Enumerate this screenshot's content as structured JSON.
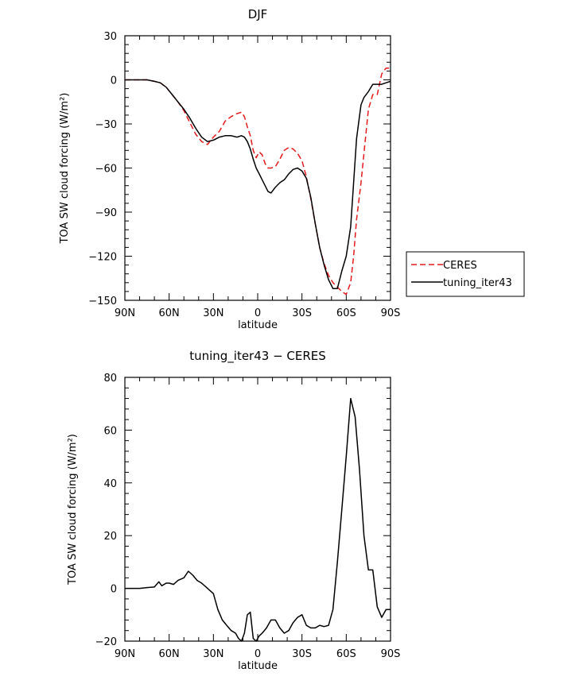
{
  "chart_data": [
    {
      "type": "line",
      "title": "DJF",
      "xlabel": "latitude",
      "ylabel": "TOA SW cloud forcing (W/m²)",
      "x_range": [
        90,
        -90
      ],
      "ylim": [
        -150,
        30
      ],
      "x_ticks": [
        {
          "value": 90,
          "label": "90N"
        },
        {
          "value": 60,
          "label": "60N"
        },
        {
          "value": 30,
          "label": "30N"
        },
        {
          "value": 0,
          "label": "0"
        },
        {
          "value": -30,
          "label": "30S"
        },
        {
          "value": -60,
          "label": "60S"
        },
        {
          "value": -90,
          "label": "90S"
        }
      ],
      "y_ticks": [
        {
          "value": 30,
          "label": "30"
        },
        {
          "value": 0,
          "label": "0"
        },
        {
          "value": -30,
          "label": "−30"
        },
        {
          "value": -60,
          "label": "−60"
        },
        {
          "value": -90,
          "label": "−90"
        },
        {
          "value": -120,
          "label": "−120"
        },
        {
          "value": -150,
          "label": "−150"
        }
      ],
      "legend": {
        "placement": "right",
        "entries": [
          "CERES",
          "tuning_iter43"
        ]
      },
      "series": [
        {
          "name": "CERES",
          "color": "#e41a1c",
          "dash": true,
          "x": [
            90,
            85,
            80,
            75,
            70,
            66,
            62,
            58,
            54,
            50,
            46,
            42,
            38,
            34,
            30,
            26,
            22,
            18,
            14,
            11,
            9,
            7,
            5,
            3,
            1,
            -1,
            -3,
            -5,
            -7,
            -9,
            -12,
            -15,
            -18,
            -21,
            -24,
            -27,
            -30,
            -33,
            -36,
            -39,
            -42,
            -45,
            -48,
            -51,
            -54,
            -57,
            -60,
            -63,
            -65,
            -67,
            -70,
            -72,
            -75,
            -78,
            -81,
            -84,
            -87,
            -90
          ],
          "y": [
            0,
            0,
            0,
            0,
            -1,
            -2,
            -5,
            -10,
            -15,
            -21,
            -29,
            -37,
            -42,
            -44,
            -39,
            -35,
            -28,
            -25,
            -23,
            -22,
            -25,
            -32,
            -38,
            -48,
            -53,
            -49,
            -51,
            -57,
            -60,
            -60,
            -59,
            -54,
            -48,
            -46,
            -47,
            -50,
            -55,
            -66,
            -81,
            -98,
            -114,
            -125,
            -133,
            -138,
            -141,
            -144,
            -146,
            -138,
            -120,
            -95,
            -70,
            -50,
            -20,
            -10,
            -10,
            4,
            8,
            8
          ]
        },
        {
          "name": "tuning_iter43",
          "color": "#000000",
          "dash": false,
          "x": [
            90,
            85,
            80,
            75,
            70,
            66,
            62,
            58,
            54,
            50,
            46,
            42,
            38,
            34,
            30,
            26,
            22,
            18,
            14,
            11,
            9,
            7,
            5,
            3,
            1,
            -1,
            -3,
            -5,
            -7,
            -9,
            -12,
            -15,
            -18,
            -21,
            -24,
            -27,
            -30,
            -33,
            -36,
            -39,
            -42,
            -45,
            -48,
            -51,
            -54,
            -57,
            -60,
            -63,
            -65,
            -67,
            -70,
            -72,
            -75,
            -78,
            -81,
            -84,
            -87,
            -90
          ],
          "y": [
            0,
            0,
            0,
            0,
            -1,
            -2,
            -5,
            -10,
            -15,
            -20,
            -26,
            -33,
            -39,
            -42,
            -41,
            -39,
            -38,
            -38,
            -39,
            -38,
            -39,
            -42,
            -47,
            -54,
            -60,
            -64,
            -68,
            -72,
            -76,
            -77,
            -73,
            -70,
            -68,
            -64,
            -61,
            -60,
            -62,
            -67,
            -80,
            -98,
            -114,
            -126,
            -136,
            -142,
            -142,
            -130,
            -120,
            -100,
            -70,
            -40,
            -17,
            -12,
            -8,
            -3,
            -3,
            -3,
            -2,
            -1
          ]
        }
      ]
    },
    {
      "type": "line",
      "title": "tuning_iter43 − CERES",
      "xlabel": "latitude",
      "ylabel": "TOA SW cloud forcing (W/m²)",
      "x_range": [
        90,
        -90
      ],
      "ylim": [
        -20,
        80
      ],
      "x_ticks": [
        {
          "value": 90,
          "label": "90N"
        },
        {
          "value": 60,
          "label": "60N"
        },
        {
          "value": 30,
          "label": "30N"
        },
        {
          "value": 0,
          "label": "0"
        },
        {
          "value": -30,
          "label": "30S"
        },
        {
          "value": -60,
          "label": "60S"
        },
        {
          "value": -90,
          "label": "90S"
        }
      ],
      "y_ticks": [
        {
          "value": 80,
          "label": "80"
        },
        {
          "value": 60,
          "label": "60"
        },
        {
          "value": 40,
          "label": "40"
        },
        {
          "value": 20,
          "label": "20"
        },
        {
          "value": 0,
          "label": "0"
        },
        {
          "value": -20,
          "label": "−20"
        }
      ],
      "series": [
        {
          "color": "#000000",
          "dash": false,
          "x": [
            90,
            85,
            80,
            75,
            70,
            67,
            65,
            62,
            60,
            57,
            54,
            50,
            47,
            44,
            41,
            38,
            35,
            33,
            30,
            27,
            24,
            21,
            18,
            15,
            13,
            11,
            9,
            7,
            5,
            3,
            1,
            -1,
            -3,
            -6,
            -9,
            -12,
            -15,
            -18,
            -21,
            -24,
            -27,
            -30,
            -33,
            -36,
            -39,
            -42,
            -45,
            -48,
            -51,
            -54,
            -57,
            -60,
            -63,
            -66,
            -69,
            -72,
            -75,
            -78,
            -81,
            -84,
            -87,
            -90
          ],
          "y": [
            0,
            0,
            0,
            0.3,
            0.5,
            2.5,
            1,
            2,
            2,
            1.5,
            3,
            4,
            6.5,
            5,
            3,
            2,
            0.5,
            -0.5,
            -2,
            -8,
            -12,
            -14,
            -16,
            -17,
            -19,
            -20,
            -17,
            -10,
            -9,
            -19,
            -20,
            -18,
            -17,
            -15,
            -12,
            -12,
            -15,
            -17,
            -16,
            -13,
            -11,
            -10,
            -14,
            -15,
            -15,
            -14,
            -14.5,
            -14,
            -8,
            10,
            30,
            50,
            72,
            65,
            45,
            20,
            7,
            7,
            -7,
            -11,
            -8,
            -8
          ]
        }
      ]
    }
  ]
}
